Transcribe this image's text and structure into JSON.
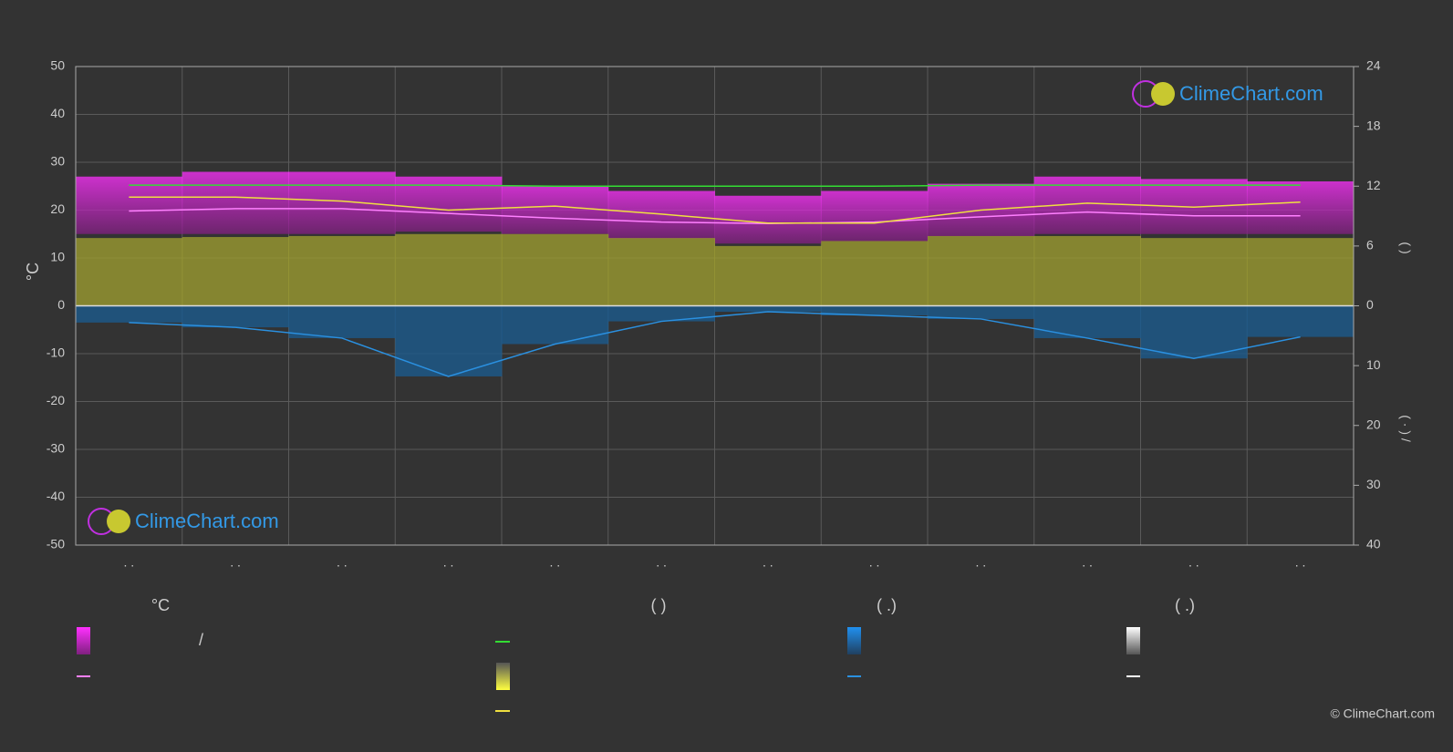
{
  "chart_data": {
    "type": "line",
    "ylabel": "°C",
    "y2label": "(      )",
    "y3label": "(  ·  )   /",
    "watermark": "ClimeChart.com",
    "copyright": "© ClimeChart.com",
    "categories": [
      ". .",
      ". .",
      ". .",
      ". .",
      ". .",
      ". .",
      ". .",
      ". .",
      ". .",
      ". .",
      ". .",
      ". ."
    ],
    "ylim": [
      -50,
      50
    ],
    "yticks": [
      -50,
      -40,
      -30,
      -20,
      -10,
      0,
      10,
      20,
      30,
      40,
      50
    ],
    "y2lim": [
      0,
      24
    ],
    "y2ticks": [
      0,
      6,
      12,
      18,
      24
    ],
    "y3lim": [
      0,
      40
    ],
    "y3ticks": [
      10,
      20,
      30,
      40
    ],
    "grid": true,
    "series": [
      {
        "kind": "band",
        "color": "#d42ad4",
        "low": [
          15,
          15,
          15,
          15.5,
          15,
          14,
          13,
          13.5,
          14.5,
          15,
          15,
          15
        ],
        "values": [
          27,
          28,
          28,
          27,
          25,
          24,
          23,
          24,
          25.5,
          27,
          26.5,
          26
        ]
      },
      {
        "kind": "line",
        "color": "#ff80ff",
        "values": [
          19.8,
          20.3,
          20.3,
          19.3,
          18.3,
          17.5,
          17.2,
          17.5,
          18.6,
          19.6,
          18.8,
          18.8
        ]
      },
      {
        "kind": "line",
        "axis": "y2",
        "color": "#33dd33",
        "values": [
          12.1,
          12.1,
          12.1,
          12.1,
          12,
          12,
          12,
          12,
          12.1,
          12.1,
          12.1,
          12.1
        ]
      },
      {
        "kind": "area",
        "axis": "y2",
        "color": "#9a9a30",
        "values": [
          6.8,
          6.9,
          7,
          7.2,
          7.2,
          6.8,
          6,
          6.5,
          7,
          7,
          6.8,
          6.8
        ]
      },
      {
        "kind": "line",
        "axis": "y2",
        "color": "#f0e040",
        "values": [
          10.9,
          10.9,
          10.5,
          9.6,
          10,
          9.2,
          8.3,
          8.3,
          9.6,
          10.3,
          9.9,
          10.4
        ]
      },
      {
        "kind": "area",
        "axis": "y3",
        "color": "#1c5a8c",
        "values": [
          2.8,
          3.6,
          5.4,
          11.8,
          6.4,
          2.6,
          1,
          1.6,
          2.2,
          5.4,
          8.8,
          5.2
        ]
      },
      {
        "kind": "line",
        "axis": "y3",
        "color": "#2a90e0",
        "values": [
          2.8,
          3.6,
          5.4,
          11.8,
          6.4,
          2.6,
          1,
          1.6,
          2.2,
          5.4,
          8.8,
          5.2
        ]
      }
    ],
    "legend": {
      "headers": [
        "°C",
        "(          )",
        "(    .)",
        "(    .)"
      ],
      "separator": "/"
    }
  }
}
